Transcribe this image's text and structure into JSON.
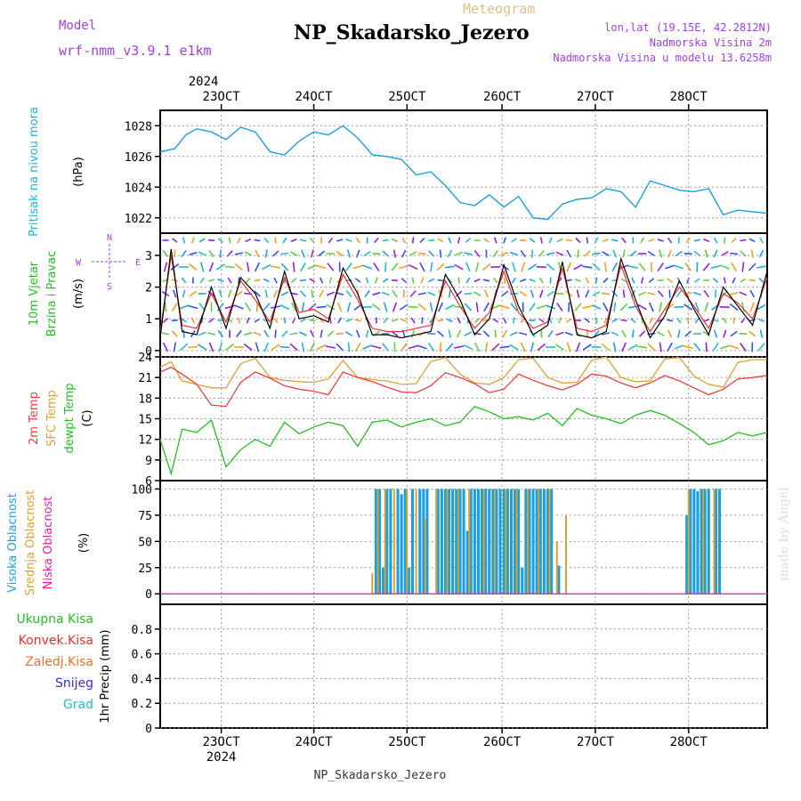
{
  "header": {
    "title": "NP_Skadarsko_Jezero",
    "meteogram_label": "Meteogram",
    "model_label": "Model",
    "model_value": "wrf-nmm_v3.9.1  e1km",
    "lonlat": "lon,lat (19.15E, 42.2812N)",
    "station_height": "Nadmorska Visina 2m",
    "model_height": "Nadmorska Visina u modelu 13.6258m"
  },
  "footer": {
    "title": "NP_Skadarsko_Jezero"
  },
  "watermark": "made by Angel",
  "colors": {
    "pressure": "#1aa0e0",
    "wind_speed": "#000000",
    "wind_gust": "#e83030",
    "temp_2m": "#e84040",
    "temp_sfc": "#e0a030",
    "temp_dewpt": "#20c020",
    "cloud_high": "#1aa0e0",
    "cloud_mid": "#e0a030",
    "cloud_low": "#e020a0",
    "label_purple": "#a040e0",
    "label_cyan": "#20b0e0"
  },
  "chart_data": [
    {
      "type": "line",
      "panel": "pressure",
      "ylabel_lines": [
        "Pritisak na nivou mora",
        "(hPa)"
      ],
      "ylim": [
        1021,
        1029
      ],
      "yticks": [
        "1022",
        "1024",
        "1026",
        "1028"
      ],
      "x_top_labels": [
        "23OCT",
        "24OCT",
        "25OCT",
        "26OCT",
        "27OCT",
        "28OCT"
      ],
      "x_top_year": "2024",
      "grid": true,
      "x": [
        0,
        4,
        7,
        10,
        14,
        18,
        22,
        26,
        30,
        34,
        38,
        42,
        46,
        50,
        54,
        58,
        62,
        66,
        70,
        74,
        78,
        82,
        86,
        90,
        94,
        98,
        102,
        106,
        110,
        114,
        118,
        122,
        126,
        130,
        134,
        138,
        142,
        146,
        150,
        154,
        158,
        162,
        166
      ],
      "values": [
        1026.3,
        1026.5,
        1027.4,
        1027.8,
        1027.6,
        1027.1,
        1027.9,
        1027.6,
        1026.3,
        1026.1,
        1027.0,
        1027.6,
        1027.4,
        1028.0,
        1027.2,
        1026.1,
        1026.0,
        1025.8,
        1024.8,
        1025.0,
        1024.1,
        1023.0,
        1022.8,
        1023.5,
        1022.7,
        1023.4,
        1022.0,
        1021.9,
        1022.9,
        1023.2,
        1023.3,
        1023.9,
        1023.7,
        1022.7,
        1024.4,
        1024.1,
        1023.8,
        1023.7,
        1023.9,
        1022.2,
        1022.5,
        1022.4,
        1022.3
      ]
    },
    {
      "type": "line",
      "panel": "wind",
      "ylabel_lines": [
        "10m Vjetar",
        "Brzina i Pravac",
        "(m/s)"
      ],
      "ylim": [
        -0.2,
        3.7
      ],
      "yticks": [
        "0",
        "1",
        "2",
        "3"
      ],
      "compass": {
        "n": "N",
        "s": "S",
        "e": "E",
        "w": "W"
      },
      "grid": true,
      "series": [
        {
          "name": "speed",
          "x": [
            0,
            3,
            6,
            10,
            14,
            18,
            22,
            26,
            30,
            34,
            38,
            42,
            46,
            50,
            54,
            58,
            62,
            66,
            70,
            74,
            78,
            82,
            86,
            90,
            94,
            98,
            102,
            106,
            110,
            114,
            118,
            122,
            126,
            130,
            134,
            138,
            142,
            146,
            150,
            154,
            158,
            162,
            166
          ],
          "values": [
            0.4,
            3.2,
            0.6,
            0.5,
            2.0,
            0.7,
            2.3,
            1.8,
            0.7,
            2.5,
            1.0,
            1.1,
            0.9,
            2.6,
            1.8,
            0.5,
            0.5,
            0.4,
            0.5,
            0.6,
            2.4,
            1.6,
            0.5,
            1.0,
            2.7,
            1.4,
            0.5,
            0.8,
            2.8,
            0.5,
            0.4,
            0.6,
            2.9,
            1.6,
            0.4,
            1.1,
            2.2,
            1.3,
            0.5,
            2.0,
            1.4,
            0.8,
            2.5
          ]
        },
        {
          "name": "gust",
          "x": [
            0,
            3,
            6,
            10,
            14,
            18,
            22,
            26,
            30,
            34,
            38,
            42,
            46,
            50,
            54,
            58,
            62,
            66,
            70,
            74,
            78,
            82,
            86,
            90,
            94,
            98,
            102,
            106,
            110,
            114,
            118,
            122,
            126,
            130,
            134,
            138,
            142,
            146,
            150,
            154,
            158,
            162,
            166
          ],
          "values": [
            0.6,
            3.0,
            0.8,
            0.7,
            1.8,
            0.9,
            2.2,
            1.6,
            0.9,
            2.3,
            1.2,
            1.3,
            1.0,
            2.4,
            1.6,
            0.7,
            0.6,
            0.6,
            0.7,
            0.8,
            2.2,
            1.4,
            0.7,
            1.2,
            2.5,
            1.2,
            0.7,
            0.9,
            2.6,
            0.7,
            0.6,
            0.8,
            2.7,
            1.4,
            0.6,
            1.3,
            2.0,
            1.4,
            0.7,
            1.8,
            1.5,
            1.0,
            2.3
          ]
        }
      ]
    },
    {
      "type": "line",
      "panel": "temperature",
      "ylabel_lines": [
        "2m Temp",
        "SFC Temp",
        "dewpt Temp",
        "(C)"
      ],
      "ylim": [
        6,
        24
      ],
      "yticks": [
        "6",
        "9",
        "12",
        "15",
        "18",
        "21",
        "24"
      ],
      "grid": true,
      "series": [
        {
          "name": "2m Temp",
          "x": [
            0,
            3,
            6,
            10,
            14,
            18,
            22,
            26,
            30,
            34,
            38,
            42,
            46,
            50,
            54,
            58,
            62,
            66,
            70,
            74,
            78,
            82,
            86,
            90,
            94,
            98,
            102,
            106,
            110,
            114,
            118,
            122,
            126,
            130,
            134,
            138,
            142,
            146,
            150,
            154,
            158,
            162,
            166
          ],
          "values": [
            21.8,
            22.5,
            21.5,
            20.0,
            17.0,
            16.8,
            20.3,
            21.8,
            20.9,
            19.8,
            19.3,
            19.0,
            18.5,
            21.8,
            21.0,
            20.4,
            19.6,
            18.9,
            18.8,
            19.8,
            21.7,
            21.0,
            20.1,
            18.8,
            19.3,
            21.5,
            20.6,
            19.8,
            19.2,
            20.0,
            21.5,
            21.2,
            20.2,
            19.5,
            20.2,
            21.3,
            20.5,
            19.5,
            18.5,
            19.3,
            20.8,
            21.0,
            21.3
          ]
        },
        {
          "name": "SFC Temp",
          "x": [
            0,
            3,
            6,
            10,
            14,
            18,
            22,
            26,
            30,
            34,
            38,
            42,
            46,
            50,
            54,
            58,
            62,
            66,
            70,
            74,
            78,
            82,
            86,
            90,
            94,
            98,
            102,
            106,
            110,
            114,
            118,
            122,
            126,
            130,
            134,
            138,
            142,
            146,
            150,
            154,
            158,
            162,
            166
          ],
          "values": [
            22.5,
            23.3,
            20.5,
            20.0,
            19.5,
            19.5,
            23.0,
            23.8,
            21.0,
            20.6,
            20.4,
            20.3,
            20.8,
            23.5,
            21.0,
            20.7,
            20.5,
            20.0,
            20.1,
            23.3,
            23.9,
            21.5,
            20.2,
            20.0,
            21.0,
            23.6,
            23.8,
            21.0,
            20.2,
            20.3,
            23.5,
            24.0,
            21.0,
            20.4,
            20.5,
            23.7,
            23.9,
            21.2,
            20.0,
            19.6,
            23.2,
            23.6,
            23.6
          ]
        },
        {
          "name": "dewpt Temp",
          "x": [
            0,
            3,
            6,
            10,
            14,
            18,
            22,
            26,
            30,
            34,
            38,
            42,
            46,
            50,
            54,
            58,
            62,
            66,
            70,
            74,
            78,
            82,
            86,
            90,
            94,
            98,
            102,
            106,
            110,
            114,
            118,
            122,
            126,
            130,
            134,
            138,
            142,
            146,
            150,
            154,
            158,
            162,
            166
          ],
          "values": [
            12.0,
            7.0,
            13.5,
            13.0,
            14.8,
            8.0,
            10.5,
            12.0,
            11.0,
            14.5,
            12.8,
            13.8,
            14.5,
            14.0,
            11.0,
            14.5,
            14.8,
            13.8,
            14.5,
            15.0,
            14.0,
            14.5,
            16.8,
            16.0,
            15.0,
            15.3,
            14.8,
            15.8,
            14.0,
            16.5,
            15.5,
            15.0,
            14.3,
            15.5,
            16.2,
            15.5,
            14.3,
            13.0,
            11.2,
            11.8,
            13.0,
            12.5,
            13.0
          ]
        }
      ]
    },
    {
      "type": "bar",
      "panel": "cloud",
      "ylabel_lines": [
        "Visoka Oblacnost",
        "Srednja Oblacnost",
        "Niska Oblacnost",
        "(%)"
      ],
      "ylim": [
        -10,
        108
      ],
      "yticks": [
        "0",
        "25",
        "50",
        "75",
        "100"
      ],
      "grid": true,
      "series": [
        {
          "name": "Visoka Oblacnost",
          "x": [
            59,
            60,
            61,
            62,
            63,
            65,
            66,
            67,
            68,
            69,
            71,
            72,
            73,
            76,
            77,
            78,
            79,
            80,
            81,
            82,
            83,
            84,
            85,
            86,
            87,
            88,
            89,
            90,
            91,
            92,
            93,
            94,
            95,
            96,
            97,
            98,
            99,
            100,
            101,
            102,
            103,
            104,
            105,
            106,
            107,
            109,
            144,
            145,
            146,
            147,
            148,
            149,
            150,
            152,
            153
          ],
          "values": [
            100,
            100,
            25,
            100,
            100,
            100,
            95,
            100,
            25,
            100,
            100,
            100,
            100,
            100,
            100,
            100,
            100,
            100,
            100,
            100,
            100,
            60,
            100,
            100,
            100,
            100,
            100,
            100,
            100,
            100,
            100,
            100,
            100,
            100,
            100,
            100,
            25,
            100,
            100,
            100,
            100,
            100,
            100,
            100,
            100,
            27,
            75,
            100,
            100,
            98,
            100,
            100,
            100,
            100,
            100
          ]
        },
        {
          "name": "Srednja Oblacnost",
          "x": [
            58,
            59.5,
            61.5,
            64,
            67.5,
            70,
            72.5,
            75.5,
            78.5,
            81.5,
            84.5,
            88.5,
            91.5,
            94.5,
            97.5,
            100.5,
            103.5,
            106.5,
            108.5,
            111,
            144.5,
            148.5,
            151.5
          ],
          "values": [
            20,
            100,
            100,
            100,
            100,
            100,
            72,
            100,
            100,
            100,
            100,
            100,
            100,
            100,
            100,
            100,
            100,
            100,
            50,
            75,
            100,
            100,
            100
          ]
        }
      ]
    },
    {
      "type": "line",
      "panel": "precipitation",
      "ylabel_lines": [
        "1hr Precip (mm)"
      ],
      "ylim": [
        0,
        1.0
      ],
      "yticks": [
        "0",
        "0.2",
        "0.4",
        "0.6",
        "0.8"
      ],
      "legend": [
        "Ukupna Kisa",
        "Konvek.Kisa",
        "Zaledj.Kisa",
        "Snijeg",
        "Grad"
      ],
      "x_bottom_labels": [
        "23OCT",
        "24OCT",
        "25OCT",
        "26OCT",
        "27OCT",
        "28OCT"
      ],
      "x_bottom_year": "2024",
      "grid": true,
      "values": []
    }
  ]
}
